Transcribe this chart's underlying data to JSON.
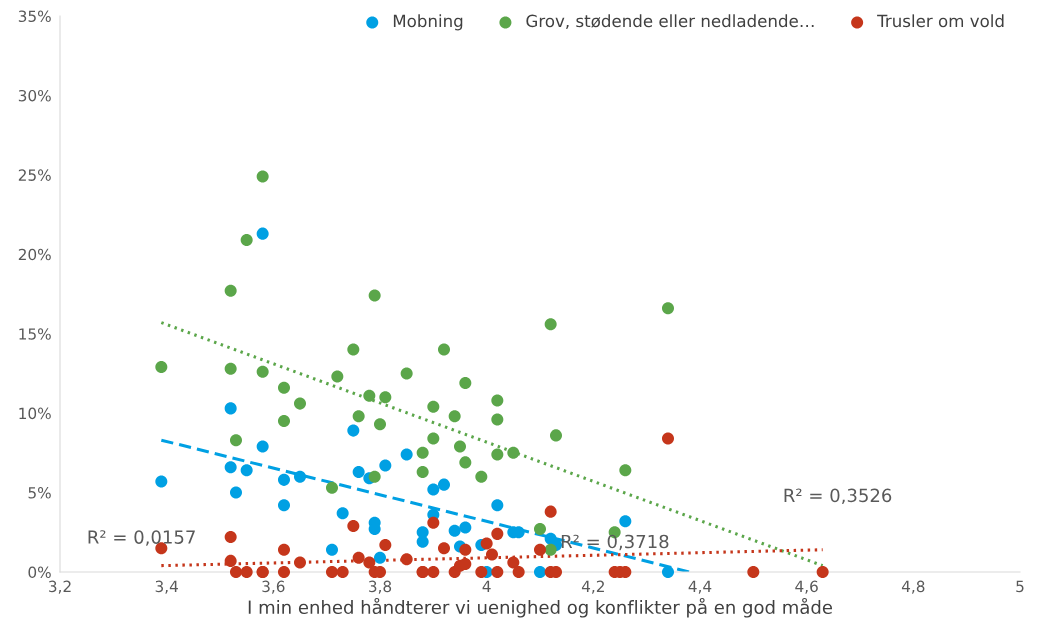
{
  "chart_data": {
    "type": "scatter",
    "xlabel": "I min enhed håndterer vi uenighed og konflikter på en god måde",
    "xlim": [
      3.2,
      5
    ],
    "xticks": [
      {
        "value": 3.2,
        "label": "3,2"
      },
      {
        "value": 3.4,
        "label": "3,4"
      },
      {
        "value": 3.6,
        "label": "3,6"
      },
      {
        "value": 3.8,
        "label": "3,8"
      },
      4,
      {
        "value": 4.2,
        "label": "4,2"
      },
      {
        "value": 4.4,
        "label": "4,4"
      },
      {
        "value": 4.6,
        "label": "4,6"
      },
      {
        "value": 4.8,
        "label": "4,8"
      },
      5
    ],
    "ylim": [
      0,
      35
    ],
    "yticks": [
      {
        "value": 0,
        "label": "0%"
      },
      {
        "value": 5,
        "label": "5%"
      },
      {
        "value": 10,
        "label": "10%"
      },
      {
        "value": 15,
        "label": "15%"
      },
      {
        "value": 20,
        "label": "20%"
      },
      {
        "value": 25,
        "label": "25%"
      },
      {
        "value": 30,
        "label": "30%"
      },
      {
        "value": 35,
        "label": "35%"
      }
    ],
    "grid": false,
    "legend": "top right",
    "series": [
      {
        "name": "Mobning",
        "color": "#00a0e3",
        "marker": "circle",
        "x": [
          3.39,
          3.52,
          3.52,
          3.53,
          3.55,
          3.58,
          3.58,
          3.62,
          3.62,
          3.65,
          3.71,
          3.73,
          3.75,
          3.76,
          3.78,
          3.79,
          3.79,
          3.8,
          3.81,
          3.85,
          3.88,
          3.88,
          3.9,
          3.9,
          3.92,
          3.94,
          3.95,
          3.96,
          3.99,
          4.0,
          4.02,
          4.05,
          4.06,
          4.1,
          4.12,
          4.13,
          4.26,
          4.34
        ],
        "values": [
          5.7,
          10.3,
          6.6,
          5.0,
          6.4,
          7.9,
          21.3,
          4.2,
          5.8,
          6.0,
          1.4,
          3.7,
          8.9,
          6.3,
          5.9,
          3.1,
          2.7,
          0.9,
          6.7,
          7.4,
          2.5,
          1.9,
          5.2,
          3.6,
          5.5,
          2.6,
          1.6,
          2.8,
          1.7,
          0,
          4.2,
          2.5,
          2.5,
          0,
          2.1,
          1.7,
          3.2,
          0
        ]
      },
      {
        "name": "Grov, stødende eller nedladende…",
        "color": "#5ba64a",
        "marker": "circle",
        "x": [
          3.39,
          3.52,
          3.52,
          3.53,
          3.55,
          3.58,
          3.58,
          3.62,
          3.62,
          3.65,
          3.71,
          3.72,
          3.75,
          3.76,
          3.78,
          3.79,
          3.79,
          3.8,
          3.81,
          3.85,
          3.88,
          3.88,
          3.9,
          3.9,
          3.92,
          3.94,
          3.95,
          3.96,
          3.96,
          3.99,
          4.02,
          4.02,
          4.02,
          4.05,
          4.1,
          4.12,
          4.12,
          4.13,
          4.24,
          4.26,
          4.34
        ],
        "values": [
          12.9,
          12.8,
          17.7,
          8.3,
          20.9,
          12.6,
          24.9,
          9.5,
          11.6,
          10.6,
          5.3,
          12.3,
          14.0,
          9.8,
          11.1,
          17.4,
          6.0,
          9.3,
          11.0,
          12.5,
          6.3,
          7.5,
          10.4,
          8.4,
          14.0,
          9.8,
          7.9,
          6.9,
          11.9,
          6.0,
          10.8,
          9.6,
          7.4,
          7.5,
          2.7,
          15.6,
          1.4,
          8.6,
          2.5,
          6.4,
          16.6
        ]
      },
      {
        "name": "Trusler om vold",
        "color": "#c5361b",
        "marker": "circle",
        "x": [
          3.39,
          3.52,
          3.52,
          3.53,
          3.55,
          3.58,
          3.58,
          3.62,
          3.62,
          3.65,
          3.71,
          3.73,
          3.75,
          3.76,
          3.78,
          3.79,
          3.8,
          3.81,
          3.85,
          3.88,
          3.88,
          3.9,
          3.9,
          3.92,
          3.94,
          3.95,
          3.96,
          3.96,
          3.99,
          4.0,
          4.02,
          4.01,
          4.02,
          4.05,
          4.06,
          4.1,
          4.12,
          4.12,
          4.13,
          4.24,
          4.25,
          4.26,
          4.34,
          4.5,
          4.63
        ],
        "values": [
          1.5,
          0.7,
          2.2,
          0,
          0,
          0,
          0,
          0,
          1.4,
          0.6,
          0,
          0,
          2.9,
          0.9,
          0.6,
          0,
          0,
          1.7,
          0.8,
          0,
          0,
          3.1,
          0,
          1.5,
          0,
          0.4,
          1.4,
          0.5,
          0,
          1.8,
          2.4,
          1.1,
          0,
          0.6,
          0,
          1.4,
          3.8,
          0,
          0,
          0,
          0,
          0,
          8.4,
          0,
          0
        ]
      },
      {
        "type": "line",
        "color": "#00a0e3",
        "line_style": "dashed",
        "x": [
          3.39,
          4.38
        ],
        "values": [
          8.3,
          0
        ]
      },
      {
        "type": "line",
        "color": "#5ba64a",
        "line_style": "dotted",
        "x": [
          3.39,
          4.63
        ],
        "values": [
          15.7,
          0.4
        ]
      },
      {
        "type": "line",
        "color": "#c5361b",
        "line_style": "dotted",
        "x": [
          3.39,
          4.63
        ],
        "values": [
          0.4,
          1.4
        ]
      }
    ],
    "annotations": [
      "R² = 0,3526",
      "R² = 0,3718",
      "R² = 0,0157"
    ]
  }
}
